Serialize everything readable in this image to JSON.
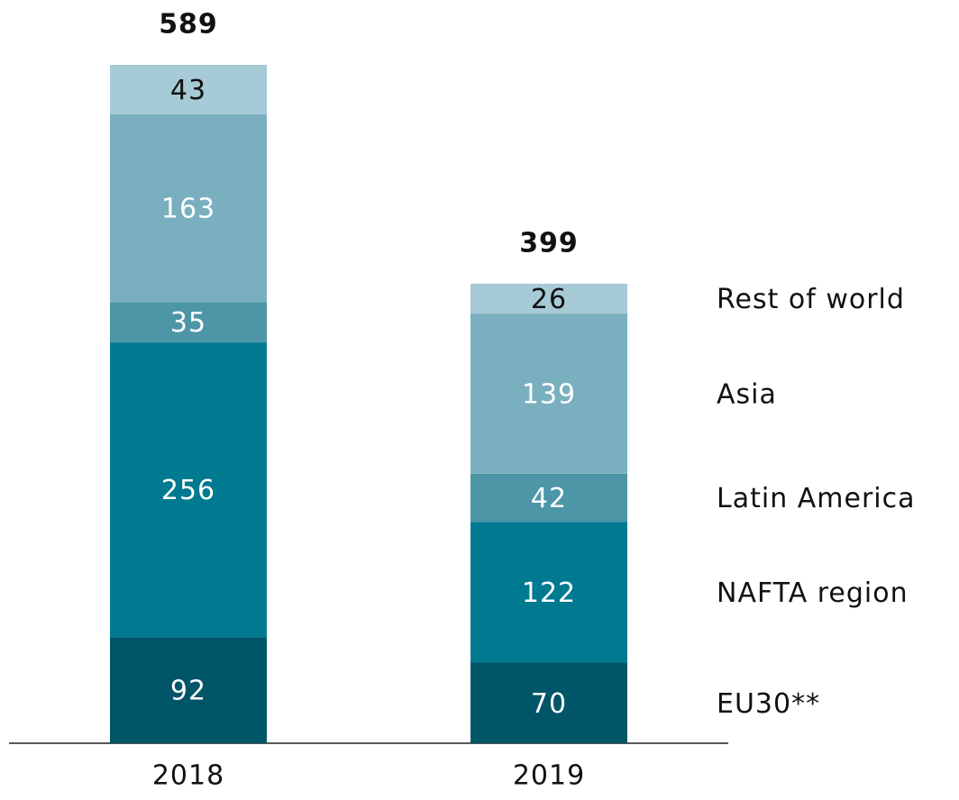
{
  "chart_data": {
    "type": "stacked_bar",
    "categories": [
      "2018",
      "2019"
    ],
    "totals": [
      589,
      399
    ],
    "series": [
      {
        "name": "EU30**",
        "color": "#005566",
        "label_color": "#ffffff",
        "values": [
          92,
          70
        ]
      },
      {
        "name": "NAFTA region",
        "color": "#007a91",
        "label_color": "#ffffff",
        "values": [
          256,
          122
        ]
      },
      {
        "name": "Latin America",
        "color": "#4d96a8",
        "label_color": "#ffffff",
        "values": [
          35,
          42
        ]
      },
      {
        "name": "Asia",
        "color": "#7aafbf",
        "label_color": "#ffffff",
        "values": [
          163,
          139
        ]
      },
      {
        "name": "Rest of world",
        "color": "#a6cad6",
        "label_color": "#111111",
        "values": [
          43,
          26
        ]
      }
    ]
  }
}
